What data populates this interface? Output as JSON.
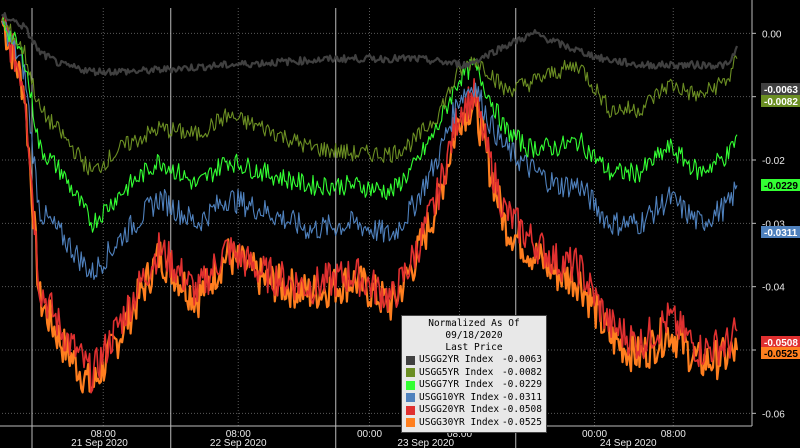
{
  "chart_data": {
    "type": "line",
    "title": "",
    "xlabel": "",
    "ylabel": "",
    "ylim": [
      -0.062,
      0.004
    ],
    "yticks": [
      "0.00",
      "-0.01",
      "-0.02",
      "-0.03",
      "-0.04",
      "-0.05",
      "-0.06"
    ],
    "ytick_values": [
      0.0,
      -0.01,
      -0.02,
      -0.03,
      -0.04,
      -0.05,
      -0.06
    ],
    "x_time_ticks": [
      "08:00",
      "08:00",
      "00:00",
      "08:00",
      "00:00",
      "08:00"
    ],
    "x_day_labels": [
      "21 Sep 2020",
      "22 Sep 2020",
      "23 Sep 2020",
      "24 Sep 2020"
    ],
    "legend": {
      "title_line1": "Normalized As Of 09/18/2020",
      "title_line2": "Last Price",
      "placement": "bottom-center"
    },
    "series": [
      {
        "name": "USGG2YR Index",
        "last": "-0.0063",
        "color": "#404040",
        "anchors": [
          [
            0,
            0.003
          ],
          [
            3,
            0.001
          ],
          [
            5,
            -0.003
          ],
          [
            8,
            -0.005
          ],
          [
            12,
            -0.006
          ],
          [
            18,
            -0.006
          ],
          [
            30,
            -0.005
          ],
          [
            45,
            -0.004
          ],
          [
            55,
            -0.004
          ],
          [
            62,
            -0.005
          ],
          [
            67,
            -0.002
          ],
          [
            71,
            0.0
          ],
          [
            75,
            -0.002
          ],
          [
            80,
            -0.004
          ],
          [
            85,
            -0.005
          ],
          [
            90,
            -0.005
          ],
          [
            97,
            -0.005
          ],
          [
            98,
            -0.002
          ]
        ]
      },
      {
        "name": "USGG5YR Index",
        "last": "-0.0082",
        "color": "#6b8e23",
        "anchors": [
          [
            0,
            0.002
          ],
          [
            3,
            -0.003
          ],
          [
            5,
            -0.012
          ],
          [
            8,
            -0.016
          ],
          [
            12,
            -0.022
          ],
          [
            16,
            -0.018
          ],
          [
            21,
            -0.015
          ],
          [
            26,
            -0.016
          ],
          [
            30,
            -0.013
          ],
          [
            35,
            -0.015
          ],
          [
            41,
            -0.018
          ],
          [
            47,
            -0.019
          ],
          [
            52,
            -0.019
          ],
          [
            55,
            -0.017
          ],
          [
            58,
            -0.013
          ],
          [
            61,
            -0.006
          ],
          [
            63,
            -0.004
          ],
          [
            65,
            -0.006
          ],
          [
            67,
            -0.009
          ],
          [
            70,
            -0.008
          ],
          [
            74,
            -0.006
          ],
          [
            77,
            -0.005
          ],
          [
            81,
            -0.012
          ],
          [
            85,
            -0.012
          ],
          [
            89,
            -0.008
          ],
          [
            93,
            -0.01
          ],
          [
            97,
            -0.007
          ],
          [
            98,
            -0.004
          ]
        ]
      },
      {
        "name": "USGG7YR Index",
        "last": "-0.0229",
        "color": "#33ff33",
        "anchors": [
          [
            0,
            0.002
          ],
          [
            3,
            -0.004
          ],
          [
            5,
            -0.018
          ],
          [
            8,
            -0.022
          ],
          [
            12,
            -0.03
          ],
          [
            16,
            -0.025
          ],
          [
            21,
            -0.02
          ],
          [
            26,
            -0.024
          ],
          [
            30,
            -0.02
          ],
          [
            35,
            -0.022
          ],
          [
            41,
            -0.024
          ],
          [
            47,
            -0.024
          ],
          [
            52,
            -0.025
          ],
          [
            55,
            -0.021
          ],
          [
            58,
            -0.015
          ],
          [
            61,
            -0.007
          ],
          [
            63,
            -0.005
          ],
          [
            65,
            -0.01
          ],
          [
            67,
            -0.015
          ],
          [
            70,
            -0.018
          ],
          [
            74,
            -0.018
          ],
          [
            77,
            -0.017
          ],
          [
            81,
            -0.022
          ],
          [
            85,
            -0.022
          ],
          [
            89,
            -0.018
          ],
          [
            93,
            -0.022
          ],
          [
            97,
            -0.019
          ],
          [
            98,
            -0.016
          ]
        ]
      },
      {
        "name": "USGG10YR Index",
        "last": "-0.0311",
        "color": "#4f81bd",
        "anchors": [
          [
            0,
            0.002
          ],
          [
            3,
            -0.006
          ],
          [
            5,
            -0.028
          ],
          [
            8,
            -0.032
          ],
          [
            12,
            -0.038
          ],
          [
            16,
            -0.032
          ],
          [
            21,
            -0.026
          ],
          [
            26,
            -0.03
          ],
          [
            30,
            -0.026
          ],
          [
            35,
            -0.028
          ],
          [
            41,
            -0.031
          ],
          [
            47,
            -0.03
          ],
          [
            52,
            -0.032
          ],
          [
            55,
            -0.027
          ],
          [
            58,
            -0.02
          ],
          [
            61,
            -0.01
          ],
          [
            63,
            -0.008
          ],
          [
            65,
            -0.014
          ],
          [
            67,
            -0.018
          ],
          [
            70,
            -0.021
          ],
          [
            74,
            -0.024
          ],
          [
            77,
            -0.024
          ],
          [
            81,
            -0.03
          ],
          [
            85,
            -0.03
          ],
          [
            89,
            -0.026
          ],
          [
            93,
            -0.03
          ],
          [
            97,
            -0.027
          ],
          [
            98,
            -0.024
          ]
        ]
      },
      {
        "name": "USGG20YR Index",
        "last": "-0.0508",
        "color": "#e03030",
        "anchors": [
          [
            0,
            0.002
          ],
          [
            3,
            -0.008
          ],
          [
            5,
            -0.04
          ],
          [
            8,
            -0.047
          ],
          [
            12,
            -0.054
          ],
          [
            16,
            -0.045
          ],
          [
            21,
            -0.034
          ],
          [
            26,
            -0.041
          ],
          [
            30,
            -0.034
          ],
          [
            35,
            -0.038
          ],
          [
            41,
            -0.04
          ],
          [
            47,
            -0.038
          ],
          [
            52,
            -0.042
          ],
          [
            55,
            -0.035
          ],
          [
            58,
            -0.026
          ],
          [
            61,
            -0.012
          ],
          [
            63,
            -0.01
          ],
          [
            65,
            -0.02
          ],
          [
            67,
            -0.028
          ],
          [
            70,
            -0.032
          ],
          [
            74,
            -0.036
          ],
          [
            77,
            -0.037
          ],
          [
            81,
            -0.046
          ],
          [
            85,
            -0.049
          ],
          [
            89,
            -0.045
          ],
          [
            93,
            -0.05
          ],
          [
            97,
            -0.049
          ],
          [
            98,
            -0.047
          ]
        ]
      },
      {
        "name": "USGG30YR Index",
        "last": "-0.0525",
        "color": "#ff7f1f",
        "anchors": [
          [
            0,
            0.002
          ],
          [
            3,
            -0.009
          ],
          [
            5,
            -0.042
          ],
          [
            8,
            -0.049
          ],
          [
            12,
            -0.056
          ],
          [
            16,
            -0.047
          ],
          [
            21,
            -0.035
          ],
          [
            26,
            -0.042
          ],
          [
            30,
            -0.035
          ],
          [
            35,
            -0.039
          ],
          [
            41,
            -0.041
          ],
          [
            47,
            -0.039
          ],
          [
            52,
            -0.043
          ],
          [
            55,
            -0.036
          ],
          [
            58,
            -0.027
          ],
          [
            61,
            -0.013
          ],
          [
            63,
            -0.011
          ],
          [
            65,
            -0.021
          ],
          [
            67,
            -0.03
          ],
          [
            70,
            -0.034
          ],
          [
            74,
            -0.038
          ],
          [
            77,
            -0.039
          ],
          [
            81,
            -0.048
          ],
          [
            85,
            -0.051
          ],
          [
            89,
            -0.047
          ],
          [
            93,
            -0.052
          ],
          [
            97,
            -0.051
          ],
          [
            98,
            -0.05
          ]
        ]
      }
    ],
    "right_labels": [
      {
        "text": "-0.0063",
        "bg": "#404040",
        "fg": "#ffffff",
        "value": -0.0063
      },
      {
        "text": "-0.0082",
        "bg": "#6b8e23",
        "fg": "#ffffff",
        "value": -0.0082
      },
      {
        "text": "-0.0229",
        "bg": "#33ff33",
        "fg": "#000000",
        "value": -0.0229
      },
      {
        "text": "-0.0311",
        "bg": "#4f81bd",
        "fg": "#ffffff",
        "value": -0.0311
      },
      {
        "text": "-0.0508",
        "bg": "#e03030",
        "fg": "#ffffff",
        "value": -0.0508
      },
      {
        "text": "-0.0525",
        "bg": "#ff7f1f",
        "fg": "#000000",
        "value": -0.0525
      }
    ]
  }
}
